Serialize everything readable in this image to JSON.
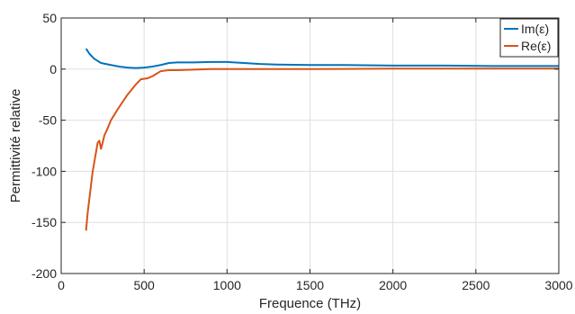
{
  "chart_data": {
    "type": "line",
    "xlabel": "Frequence (THz)",
    "ylabel": "Permittivité relative",
    "xlim": [
      0,
      3000
    ],
    "ylim": [
      -200,
      50
    ],
    "xticks": [
      0,
      500,
      1000,
      1500,
      2000,
      2500,
      3000
    ],
    "yticks": [
      -200,
      -150,
      -100,
      -50,
      0,
      50
    ],
    "grid": true,
    "legend_position": "top-right",
    "series": [
      {
        "name": "Im(ε)",
        "color": "#0072BD",
        "x": [
          150,
          170,
          200,
          240,
          300,
          350,
          400,
          450,
          500,
          550,
          600,
          650,
          700,
          800,
          900,
          1000,
          1100,
          1200,
          1300,
          1500,
          1700,
          2000,
          2300,
          2600,
          3000
        ],
        "y": [
          20,
          15,
          10,
          6,
          4,
          2.5,
          1.5,
          1,
          1.5,
          2.5,
          4,
          6,
          6.5,
          6.5,
          7,
          7,
          6,
          5,
          4.5,
          4,
          4,
          3.5,
          3.5,
          3,
          3
        ]
      },
      {
        "name": "Re(ε)",
        "color": "#D95319",
        "x": [
          150,
          160,
          175,
          190,
          205,
          220,
          230,
          240,
          250,
          260,
          280,
          300,
          350,
          400,
          450,
          480,
          520,
          550,
          600,
          650,
          700,
          800,
          900,
          1000,
          1200,
          1500,
          2000,
          2500,
          3000
        ],
        "y": [
          -158,
          -140,
          -120,
          -100,
          -86,
          -72,
          -70,
          -78,
          -72,
          -65,
          -58,
          -50,
          -37,
          -25,
          -15,
          -10,
          -9,
          -7,
          -2,
          -1,
          -1,
          -0.5,
          0,
          0,
          0,
          0,
          0.5,
          0.5,
          0.5
        ]
      }
    ]
  }
}
